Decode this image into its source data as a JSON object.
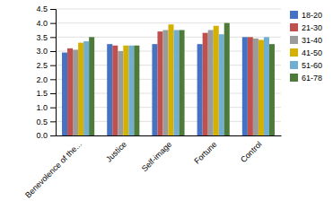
{
  "chart_data": {
    "type": "bar",
    "categories": [
      "Benevolence of the...",
      "Justice",
      "Self-image",
      "Fortune",
      "Control"
    ],
    "series": [
      {
        "name": "18-20",
        "color": "#4472C4",
        "values": [
          2.95,
          3.25,
          3.25,
          3.25,
          3.5
        ]
      },
      {
        "name": "21-30",
        "color": "#C0504D",
        "values": [
          3.1,
          3.2,
          3.7,
          3.65,
          3.5
        ]
      },
      {
        "name": "31-40",
        "color": "#9B9B9B",
        "values": [
          3.05,
          3.0,
          3.75,
          3.75,
          3.45
        ]
      },
      {
        "name": "41-50",
        "color": "#D4B000",
        "values": [
          3.3,
          3.2,
          3.95,
          3.9,
          3.4
        ]
      },
      {
        "name": "51-60",
        "color": "#72AECF",
        "values": [
          3.35,
          3.2,
          3.75,
          3.6,
          3.5
        ]
      },
      {
        "name": "61-78",
        "color": "#4E7A3A",
        "values": [
          3.5,
          3.2,
          3.75,
          4.0,
          3.25
        ]
      }
    ],
    "ylim": [
      0,
      4.5
    ],
    "yticks": [
      {
        "value": 0.0,
        "label": "0.0"
      },
      0.5,
      {
        "value": 1.0,
        "label": "1.0"
      },
      1.5,
      {
        "value": 2.0,
        "label": "2.0"
      },
      2.5,
      {
        "value": 3.0,
        "label": "3.0"
      },
      3.5,
      {
        "value": 4.0,
        "label": "4.0"
      },
      4.5
    ],
    "grid": true,
    "legend": "right"
  }
}
